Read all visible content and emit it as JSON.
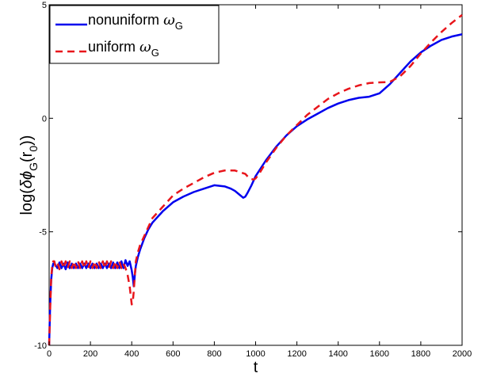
{
  "chart_data": {
    "type": "line",
    "title": "",
    "xlabel": "t",
    "ylabel_parts": {
      "pre": "log(",
      "delta": "δ",
      "phi": "ϕ",
      "sub_G": "G",
      "mid": "(r",
      "sub_0": "0",
      "post": "))"
    },
    "xlim": [
      0,
      2000
    ],
    "ylim": [
      -10,
      5
    ],
    "xticks": [
      0,
      200,
      400,
      600,
      800,
      1000,
      1200,
      1400,
      1600,
      1800,
      2000
    ],
    "yticks": [
      -10,
      -5,
      0,
      5
    ],
    "grid": false,
    "legend": {
      "position": "top-left",
      "entries": [
        {
          "text": "nonuniform ",
          "omega": "ω",
          "sub": "G"
        },
        {
          "text": "uniform ",
          "omega": "ω",
          "sub": "G"
        }
      ]
    },
    "series": [
      {
        "name": "nonuniform ωG",
        "color": "#0000ee",
        "dash": "solid",
        "x": [
          0,
          5,
          10,
          15,
          20,
          25,
          30,
          40,
          50,
          60,
          70,
          80,
          90,
          100,
          110,
          120,
          130,
          140,
          150,
          160,
          170,
          180,
          190,
          200,
          210,
          220,
          230,
          240,
          250,
          260,
          270,
          280,
          290,
          300,
          310,
          320,
          330,
          340,
          350,
          360,
          370,
          380,
          390,
          400,
          405,
          410,
          415,
          420,
          430,
          440,
          460,
          480,
          500,
          550,
          600,
          650,
          700,
          750,
          800,
          850,
          880,
          900,
          920,
          940,
          950,
          960,
          980,
          1000,
          1050,
          1100,
          1150,
          1200,
          1250,
          1300,
          1350,
          1400,
          1450,
          1500,
          1550,
          1600,
          1650,
          1700,
          1750,
          1800,
          1850,
          1900,
          1950,
          2000
        ],
        "y": [
          -10,
          -8.2,
          -7.1,
          -6.6,
          -6.4,
          -6.4,
          -6.45,
          -6.6,
          -6.35,
          -6.6,
          -6.4,
          -6.65,
          -6.35,
          -6.6,
          -6.4,
          -6.6,
          -6.4,
          -6.6,
          -6.4,
          -6.6,
          -6.4,
          -6.6,
          -6.4,
          -6.6,
          -6.4,
          -6.6,
          -6.4,
          -6.6,
          -6.4,
          -6.6,
          -6.4,
          -6.6,
          -6.4,
          -6.6,
          -6.35,
          -6.6,
          -6.35,
          -6.6,
          -6.3,
          -6.6,
          -6.25,
          -6.5,
          -6.3,
          -6.7,
          -7.0,
          -7.4,
          -6.9,
          -6.5,
          -6.1,
          -5.8,
          -5.3,
          -4.9,
          -4.6,
          -4.1,
          -3.7,
          -3.45,
          -3.25,
          -3.1,
          -2.95,
          -3.0,
          -3.1,
          -3.2,
          -3.35,
          -3.5,
          -3.45,
          -3.3,
          -2.95,
          -2.55,
          -1.85,
          -1.25,
          -0.75,
          -0.35,
          -0.05,
          0.2,
          0.45,
          0.65,
          0.8,
          0.9,
          0.95,
          1.1,
          1.5,
          2.0,
          2.5,
          2.9,
          3.2,
          3.45,
          3.6,
          3.7
        ]
      },
      {
        "name": "uniform ωG",
        "color": "#e8151b",
        "dash": "dashed",
        "x": [
          0,
          5,
          10,
          15,
          20,
          25,
          30,
          40,
          50,
          60,
          70,
          80,
          90,
          100,
          110,
          120,
          130,
          140,
          150,
          160,
          170,
          180,
          190,
          200,
          210,
          220,
          230,
          240,
          250,
          260,
          270,
          280,
          290,
          300,
          310,
          320,
          330,
          340,
          350,
          360,
          370,
          380,
          390,
          400,
          405,
          410,
          415,
          420,
          430,
          440,
          460,
          480,
          500,
          550,
          600,
          650,
          700,
          750,
          800,
          850,
          900,
          950,
          970,
          990,
          1000,
          1020,
          1050,
          1100,
          1150,
          1200,
          1250,
          1300,
          1350,
          1400,
          1450,
          1500,
          1550,
          1600,
          1650,
          1700,
          1750,
          1800,
          1850,
          1900,
          1950,
          2000
        ],
        "y": [
          -10,
          -8.4,
          -7.0,
          -6.5,
          -6.3,
          -6.3,
          -6.5,
          -6.35,
          -6.65,
          -6.3,
          -6.6,
          -6.3,
          -6.6,
          -6.3,
          -6.6,
          -6.3,
          -6.6,
          -6.3,
          -6.6,
          -6.3,
          -6.6,
          -6.3,
          -6.6,
          -6.3,
          -6.6,
          -6.3,
          -6.6,
          -6.3,
          -6.6,
          -6.3,
          -6.6,
          -6.3,
          -6.6,
          -6.3,
          -6.6,
          -6.3,
          -6.6,
          -6.3,
          -6.6,
          -6.4,
          -6.6,
          -6.9,
          -7.4,
          -8.2,
          -8.1,
          -7.6,
          -6.9,
          -6.3,
          -5.9,
          -5.6,
          -5.2,
          -4.8,
          -4.4,
          -3.9,
          -3.4,
          -3.1,
          -2.85,
          -2.6,
          -2.4,
          -2.3,
          -2.3,
          -2.45,
          -2.65,
          -2.7,
          -2.65,
          -2.4,
          -1.95,
          -1.3,
          -0.75,
          -0.3,
          0.15,
          0.5,
          0.85,
          1.1,
          1.3,
          1.45,
          1.55,
          1.58,
          1.6,
          1.85,
          2.3,
          2.85,
          3.35,
          3.8,
          4.2,
          4.55
        ]
      }
    ]
  }
}
